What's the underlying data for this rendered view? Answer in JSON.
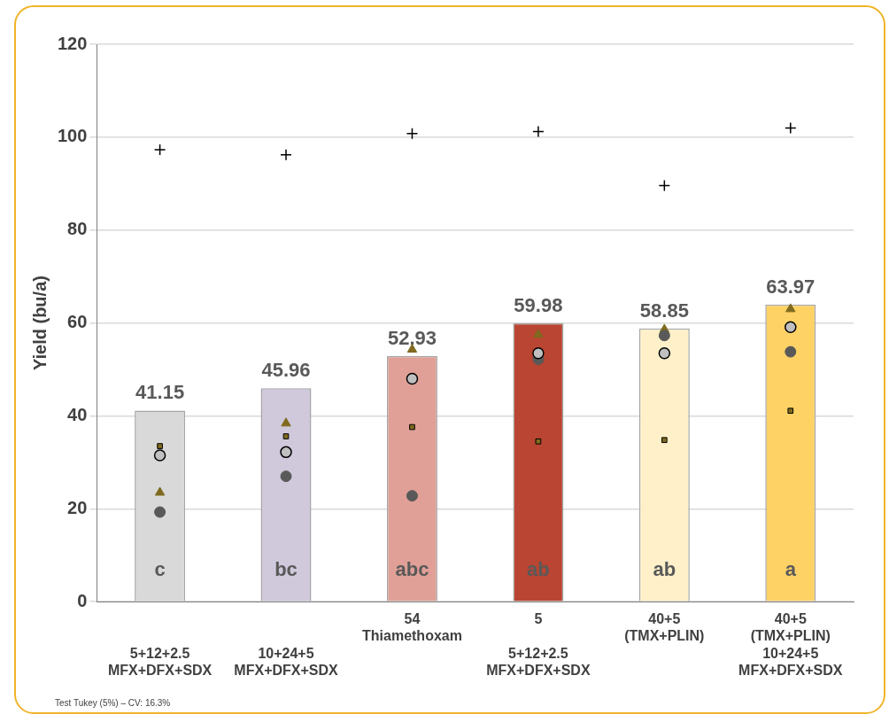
{
  "chart_data": {
    "type": "bar",
    "ylabel": "Yield (bu/a)",
    "categories": [
      "\n\n5+12+2.5\nMFX+DFX+SDX",
      "\n\n10+24+5\nMFX+DFX+SDX",
      "54\nThiamethoxam",
      "5\n\n5+12+2.5\nMFX+DFX+SDX",
      "40+5\n(TMX+PLIN)",
      "40+5\n(TMX+PLIN)\n10+24+5\nMFX+DFX+SDX"
    ],
    "values": [
      41.15,
      45.96,
      52.93,
      59.98,
      58.85,
      63.97
    ],
    "colors": [
      "#d9d9d9",
      "#d0c9dc",
      "#e0a097",
      "#b94532",
      "#fff0c9",
      "#ffd266"
    ],
    "value_labels": [
      "41.15",
      "45.96",
      "52.93",
      "59.98",
      "58.85",
      "63.97"
    ],
    "series": [
      {
        "type": "scatter",
        "marker": "cross",
        "color": "#000000",
        "values": [
          97.3,
          96.2,
          100.8,
          101.2,
          89.6,
          102.0
        ]
      },
      {
        "type": "scatter",
        "marker": "circle",
        "color": "#c0c0c0",
        "values": [
          31.5,
          32.2,
          48.0,
          53.5,
          53.5,
          59.1
        ]
      },
      {
        "type": "scatter",
        "marker": "circle",
        "color": "#595959",
        "values": [
          19.3,
          27.0,
          22.8,
          52.2,
          57.3,
          53.8
        ]
      },
      {
        "type": "scatter",
        "marker": "triangle",
        "color": "#7f6a1f",
        "values": [
          23.5,
          38.4,
          54.3,
          57.5,
          58.6,
          63.0
        ]
      },
      {
        "type": "scatter",
        "marker": "square",
        "color": "#7f6a1f",
        "values": [
          33.5,
          35.6,
          37.6,
          34.5,
          34.8,
          41.1
        ]
      }
    ],
    "ylim": [
      0,
      120
    ],
    "yticks": [
      0,
      20,
      40,
      60,
      80,
      100,
      120
    ],
    "grid": "y",
    "legend": false,
    "annotations": [
      "c",
      "bc",
      "abc",
      "ab",
      "ab",
      "a",
      "Test Tukey (5%) – CV: 16.3%"
    ]
  }
}
